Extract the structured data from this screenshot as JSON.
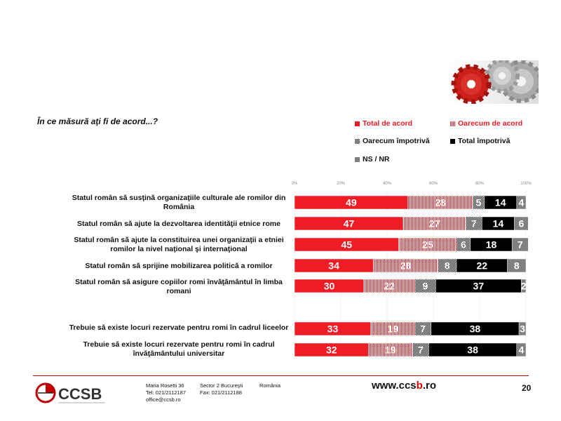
{
  "question": "În ce măsură aţi fi de acord...?",
  "legend": [
    {
      "label": "Total de acord",
      "color": "#ee1c25",
      "pattern": "solid"
    },
    {
      "label": "Oarecum de acord",
      "color": "#ee1c25",
      "pattern": "vertical-stripes"
    },
    {
      "label": "Oarecum împotrivă",
      "color": "#000000",
      "pattern": "checker"
    },
    {
      "label": "Total împotrivă",
      "color": "#000000",
      "pattern": "solid"
    },
    {
      "label": "NS / NR",
      "color": "#808080",
      "pattern": "solid"
    }
  ],
  "chart_data": {
    "type": "bar",
    "orientation": "horizontal",
    "stacked": true,
    "x_ticks": [
      "0%",
      "20%",
      "40%",
      "60%",
      "80%",
      "100%"
    ],
    "xlim": [
      0,
      100
    ],
    "categories": [
      "Statul român să susţină organizaţiile culturale ale romilor din România",
      "Statul român să ajute la dezvoltarea identităţii etnice rome",
      "Statul român să ajute la constituirea unei organizaţii a etniei romilor la nivel naţional şi internaţional",
      "Statul român să sprijine mobilizarea politică a romilor",
      "Statul român să asigure copiilor romi învăţământul în limba romani",
      "Trebuie să existe locuri rezervate pentru romi în cadrul liceelor",
      "Trebuie să existe locuri rezervate pentru romi în cadrul învăţământului universitar"
    ],
    "series": [
      {
        "name": "Total de acord",
        "values": [
          49,
          47,
          45,
          34,
          30,
          33,
          32
        ]
      },
      {
        "name": "Oarecum de acord",
        "values": [
          28,
          27,
          25,
          28,
          22,
          19,
          19
        ]
      },
      {
        "name": "Oarecum împotrivă",
        "values": [
          5,
          7,
          6,
          8,
          9,
          7,
          7
        ]
      },
      {
        "name": "Total împotrivă",
        "values": [
          14,
          14,
          18,
          22,
          37,
          38,
          38
        ]
      },
      {
        "name": "NS / NR",
        "values": [
          4,
          6,
          7,
          8,
          2,
          3,
          4
        ]
      }
    ]
  },
  "footer": {
    "logo_text": "CCSB",
    "address_line1": "Maria Rosetti 36",
    "sector": "Sector 2  Bucureşti",
    "country": "România",
    "tel": "Tel: 021/2112187",
    "fax": "Fax: 021/2112188",
    "email": "office@ccsb.ro",
    "website_prefix": "www.ccs",
    "website_highlight": "b",
    "website_suffix": ".ro",
    "page_number": "20"
  }
}
